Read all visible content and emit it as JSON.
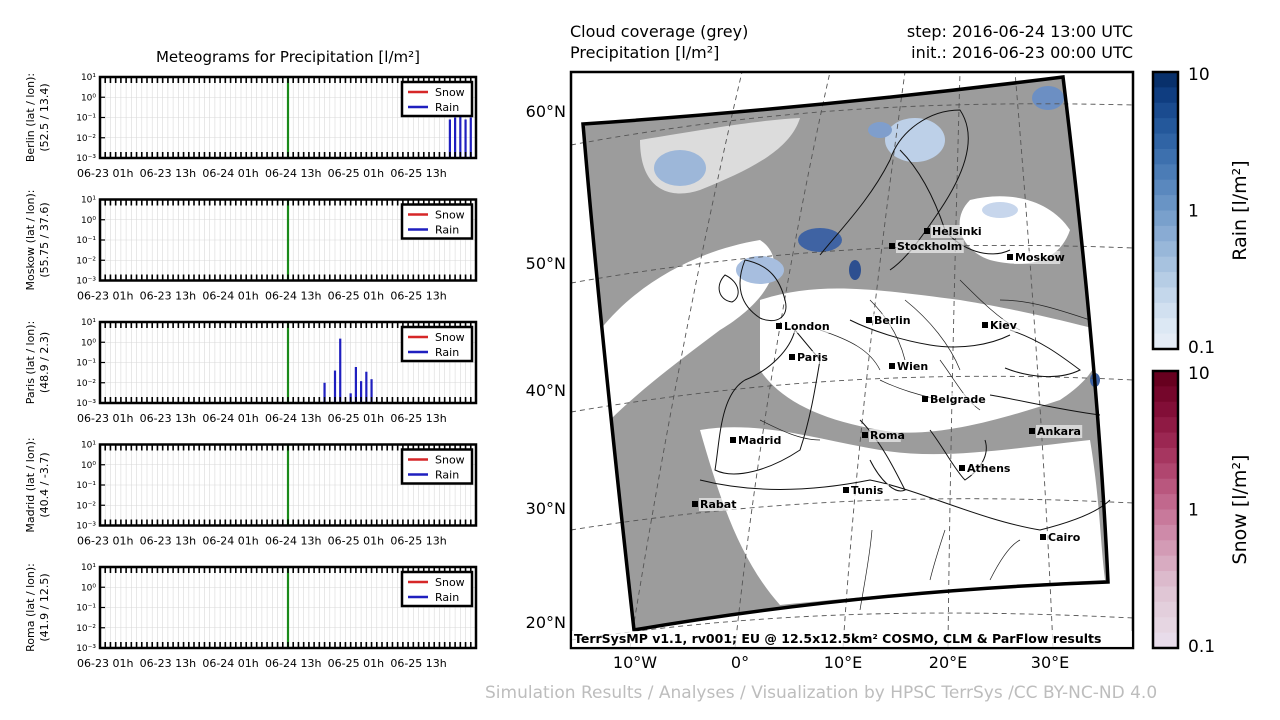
{
  "meteogram_title": "Meteograms for Precipitation [l/m²]",
  "map": {
    "header_left": [
      "Cloud coverage (grey)",
      "Precipitation [l/m²]"
    ],
    "header_right": [
      "step: 2016-06-24 13:00 UTC",
      "init.: 2016-06-23 00:00 UTC"
    ],
    "footer": "TerrSysMP v1.1, rv001; EU @ 12.5x12.5km² COSMO, CLM & ParFlow results",
    "lat_labels": [
      "60°N",
      "50°N",
      "40°N",
      "30°N",
      "20°N"
    ],
    "lon_labels": [
      "10°W",
      "0°",
      "10°E",
      "20°E",
      "30°E"
    ],
    "cities": [
      {
        "name": "Helsinki"
      },
      {
        "name": "Stockholm"
      },
      {
        "name": "Moskow"
      },
      {
        "name": "London"
      },
      {
        "name": "Berlin"
      },
      {
        "name": "Kiev"
      },
      {
        "name": "Paris"
      },
      {
        "name": "Wien"
      },
      {
        "name": "Belgrade"
      },
      {
        "name": "Madrid"
      },
      {
        "name": "Roma"
      },
      {
        "name": "Ankara"
      },
      {
        "name": "Athens"
      },
      {
        "name": "Rabat"
      },
      {
        "name": "Tunis"
      },
      {
        "name": "Cairo"
      }
    ]
  },
  "colorbars": [
    {
      "label": "Rain [l/m²]",
      "ticks": [
        "10",
        "1",
        "0.1"
      ],
      "colors": [
        "#08306b",
        "#e4ecf6"
      ]
    },
    {
      "label": "Snow [l/m²]",
      "ticks": [
        "10",
        "1",
        "0.1"
      ],
      "colors": [
        "#67001f",
        "#e8dcea"
      ]
    }
  ],
  "credit": "Simulation Results / Analyses / Visualization by HPSC TerrSys /CC BY-NC-ND 4.0",
  "chart_data": [
    {
      "type": "bar",
      "ylabel": [
        "Berlin (lat / lon):",
        "(52.5 / 13.4)"
      ],
      "x_tick_labels": [
        "06-23 01h",
        "06-23 13h",
        "06-24 01h",
        "06-24 13h",
        "06-25 01h",
        "06-25 13h"
      ],
      "y_tick_labels": [
        "10¹",
        "10⁰",
        "10⁻¹",
        "10⁻²",
        "10⁻³"
      ],
      "y_scale": "log",
      "ylim": [
        0.001,
        10
      ],
      "x_hours": [
        0,
        72
      ],
      "current_hour": 36,
      "legend": [
        "Snow",
        "Rain"
      ],
      "legend_colors": [
        "#d62728",
        "#1f1fbf"
      ],
      "series": [
        {
          "name": "Rain",
          "hours": [
            67,
            68,
            69,
            70,
            71
          ],
          "values": [
            0.08,
            0.1,
            0.12,
            0.08,
            0.1
          ]
        }
      ]
    },
    {
      "type": "bar",
      "ylabel": [
        "Moskow (lat / lon):",
        "(55.75 / 37.6)"
      ],
      "x_tick_labels": [
        "06-23 01h",
        "06-23 13h",
        "06-24 01h",
        "06-24 13h",
        "06-25 01h",
        "06-25 13h"
      ],
      "y_tick_labels": [
        "10¹",
        "10⁰",
        "10⁻¹",
        "10⁻²",
        "10⁻³"
      ],
      "y_scale": "log",
      "ylim": [
        0.001,
        10
      ],
      "x_hours": [
        0,
        72
      ],
      "current_hour": 36,
      "legend": [
        "Snow",
        "Rain"
      ],
      "legend_colors": [
        "#d62728",
        "#1f1fbf"
      ],
      "series": []
    },
    {
      "type": "bar",
      "ylabel": [
        "Paris (lat / lon):",
        "(48.9 / 2.3)"
      ],
      "x_tick_labels": [
        "06-23 01h",
        "06-23 13h",
        "06-24 01h",
        "06-24 13h",
        "06-25 01h",
        "06-25 13h"
      ],
      "y_tick_labels": [
        "10¹",
        "10⁰",
        "10⁻¹",
        "10⁻²",
        "10⁻³"
      ],
      "y_scale": "log",
      "ylim": [
        0.001,
        10
      ],
      "x_hours": [
        0,
        72
      ],
      "current_hour": 36,
      "legend": [
        "Snow",
        "Rain"
      ],
      "legend_colors": [
        "#d62728",
        "#1f1fbf"
      ],
      "series": [
        {
          "name": "Rain",
          "hours": [
            43,
            45,
            46,
            48,
            49,
            50,
            51,
            52
          ],
          "values": [
            0.01,
            0.04,
            1.5,
            0.003,
            0.06,
            0.012,
            0.035,
            0.015
          ]
        }
      ]
    },
    {
      "type": "bar",
      "ylabel": [
        "Madrid (lat / lon):",
        "(40.4 / -3.7)"
      ],
      "x_tick_labels": [
        "06-23 01h",
        "06-23 13h",
        "06-24 01h",
        "06-24 13h",
        "06-25 01h",
        "06-25 13h"
      ],
      "y_tick_labels": [
        "10¹",
        "10⁰",
        "10⁻¹",
        "10⁻²",
        "10⁻³"
      ],
      "y_scale": "log",
      "ylim": [
        0.001,
        10
      ],
      "x_hours": [
        0,
        72
      ],
      "current_hour": 36,
      "legend": [
        "Snow",
        "Rain"
      ],
      "legend_colors": [
        "#d62728",
        "#1f1fbf"
      ],
      "series": []
    },
    {
      "type": "bar",
      "ylabel": [
        "Roma (lat / lon):",
        "(41.9 / 12.5)"
      ],
      "x_tick_labels": [
        "06-23 01h",
        "06-23 13h",
        "06-24 01h",
        "06-24 13h",
        "06-25 01h",
        "06-25 13h"
      ],
      "y_tick_labels": [
        "10¹",
        "10⁰",
        "10⁻¹",
        "10⁻²",
        "10⁻³"
      ],
      "y_scale": "log",
      "ylim": [
        0.001,
        10
      ],
      "x_hours": [
        0,
        72
      ],
      "current_hour": 36,
      "legend": [
        "Snow",
        "Rain"
      ],
      "legend_colors": [
        "#d62728",
        "#1f1fbf"
      ],
      "series": []
    }
  ]
}
